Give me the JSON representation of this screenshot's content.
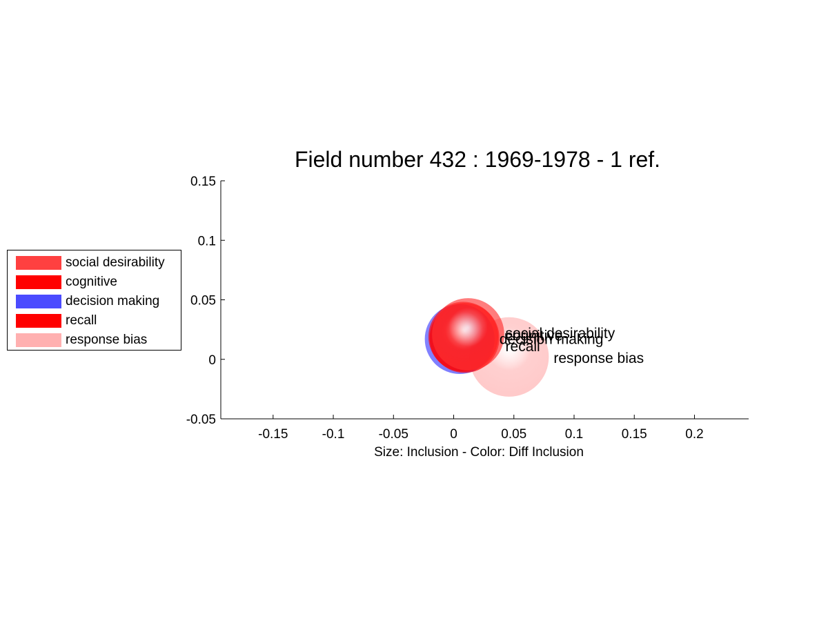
{
  "chart_data": {
    "type": "scatter",
    "title": "Field number 432 : 1969-1978  - 1 ref.",
    "xlabel": "Size: Inclusion - Color: Diff Inclusion",
    "ylabel": "",
    "xlim": [
      -0.19,
      0.245
    ],
    "ylim": [
      -0.05,
      0.15
    ],
    "xticks": [
      "-0.15",
      "-0.1",
      "-0.05",
      "0",
      "0.05",
      "0.1",
      "0.15",
      "0.2"
    ],
    "yticks": [
      "-0.05",
      "0",
      "0.05",
      "0.1",
      "0.15"
    ],
    "grid": false,
    "legend_position": "left",
    "series": [
      {
        "name": "social desirability",
        "x": 0.012,
        "y": 0.021,
        "size": 0.03,
        "color": "#ff3030",
        "label_x": 0.043,
        "label_y": 0.022
      },
      {
        "name": "cognitive",
        "x": 0.008,
        "y": 0.019,
        "size": 0.029,
        "color": "#ff0000",
        "label_x": 0.043,
        "label_y": 0.02
      },
      {
        "name": "decision making",
        "x": 0.005,
        "y": 0.017,
        "size": 0.029,
        "color": "#4040ff",
        "label_x": 0.038,
        "label_y": 0.017
      },
      {
        "name": "recall",
        "x": 0.009,
        "y": 0.018,
        "size": 0.029,
        "color": "#ff0000",
        "label_x": 0.043,
        "label_y": 0.011
      },
      {
        "name": "response bias",
        "x": 0.046,
        "y": 0.002,
        "size": 0.033,
        "color": "#ffb0b0",
        "label_x": 0.083,
        "label_y": 0.001
      }
    ]
  },
  "legend": {
    "items": [
      {
        "label": "social desirability",
        "color": "#ff4040"
      },
      {
        "label": "cognitive",
        "color": "#ff0000"
      },
      {
        "label": "decision making",
        "color": "#4b4bff"
      },
      {
        "label": "recall",
        "color": "#ff0000"
      },
      {
        "label": "response bias",
        "color": "#ffb0b0"
      }
    ]
  }
}
